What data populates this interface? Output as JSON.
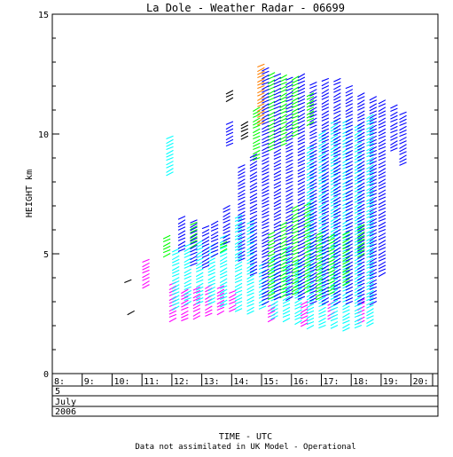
{
  "chart_data": {
    "type": "scatter",
    "title": "La Dole - Weather Radar - 06699",
    "ylabel": "HEIGHT km",
    "xlabel": "TIME - UTC",
    "footnote": "Data not assimilated in UK Model - Operational",
    "ylim": [
      0,
      15
    ],
    "xlim": [
      8,
      20.9
    ],
    "yticks": [
      {
        "value": 0,
        "label": "0"
      },
      {
        "value": 5,
        "label": "5"
      },
      {
        "value": 10,
        "label": "10"
      },
      {
        "value": 15,
        "label": "15"
      }
    ],
    "xticks": [
      {
        "value": 8,
        "label": "8:"
      },
      {
        "value": 9,
        "label": "9:"
      },
      {
        "value": 10,
        "label": "10:"
      },
      {
        "value": 11,
        "label": "11:"
      },
      {
        "value": 12,
        "label": "12:"
      },
      {
        "value": 13,
        "label": "13:"
      },
      {
        "value": 14,
        "label": "14:"
      },
      {
        "value": 15,
        "label": "15:"
      },
      {
        "value": 16,
        "label": "16:"
      },
      {
        "value": 17,
        "label": "17:"
      },
      {
        "value": 18,
        "label": "18:"
      },
      {
        "value": 19,
        "label": "19:"
      },
      {
        "value": 20,
        "label": "20:"
      }
    ],
    "date_rows": [
      "5",
      "July",
      "2006"
    ],
    "series": [
      {
        "color": "#ff00ff",
        "profiles": [
          {
            "t": 11.1,
            "h0": 3.7,
            "h1": 4.8
          },
          {
            "t": 12.0,
            "h0": 2.3,
            "h1": 3.8
          },
          {
            "t": 12.4,
            "h0": 2.3,
            "h1": 3.5
          },
          {
            "t": 12.8,
            "h0": 2.4,
            "h1": 3.6
          },
          {
            "t": 13.2,
            "h0": 2.5,
            "h1": 3.8
          },
          {
            "t": 13.6,
            "h0": 2.6,
            "h1": 3.7
          },
          {
            "t": 14.0,
            "h0": 2.7,
            "h1": 3.5
          },
          {
            "t": 15.3,
            "h0": 2.3,
            "h1": 3.0
          },
          {
            "t": 16.4,
            "h0": 2.1,
            "h1": 3.0
          },
          {
            "t": 17.3,
            "h0": 2.4,
            "h1": 3.1
          },
          {
            "t": 18.3,
            "h0": 2.2,
            "h1": 3.1
          }
        ]
      },
      {
        "color": "#00ffff",
        "profiles": [
          {
            "t": 11.9,
            "h0": 8.4,
            "h1": 9.9
          },
          {
            "t": 12.1,
            "h0": 2.8,
            "h1": 5.2
          },
          {
            "t": 12.5,
            "h0": 3.0,
            "h1": 5.4
          },
          {
            "t": 12.9,
            "h0": 3.0,
            "h1": 5.6
          },
          {
            "t": 13.3,
            "h0": 3.0,
            "h1": 5.5
          },
          {
            "t": 13.7,
            "h0": 2.9,
            "h1": 5.8
          },
          {
            "t": 14.2,
            "h0": 2.7,
            "h1": 6.6
          },
          {
            "t": 14.6,
            "h0": 2.6,
            "h1": 6.4
          },
          {
            "t": 15.0,
            "h0": 2.8,
            "h1": 4.6
          },
          {
            "t": 15.4,
            "h0": 2.4,
            "h1": 5.0
          },
          {
            "t": 15.8,
            "h0": 2.3,
            "h1": 5.4
          },
          {
            "t": 16.2,
            "h0": 2.2,
            "h1": 4.8
          },
          {
            "t": 16.6,
            "h0": 2.0,
            "h1": 9.5
          },
          {
            "t": 17.0,
            "h0": 2.0,
            "h1": 10.2
          },
          {
            "t": 17.4,
            "h0": 2.0,
            "h1": 10.6
          },
          {
            "t": 17.8,
            "h0": 1.9,
            "h1": 10.7
          },
          {
            "t": 18.2,
            "h0": 2.0,
            "h1": 10.5
          },
          {
            "t": 18.6,
            "h0": 2.1,
            "h1": 10.9
          }
        ]
      },
      {
        "color": "#00ff00",
        "profiles": [
          {
            "t": 11.8,
            "h0": 5.0,
            "h1": 5.8
          },
          {
            "t": 12.7,
            "h0": 5.4,
            "h1": 6.4
          },
          {
            "t": 13.7,
            "h0": 5.2,
            "h1": 5.6
          },
          {
            "t": 14.8,
            "h0": 9.0,
            "h1": 11.2
          },
          {
            "t": 15.3,
            "h0": 9.4,
            "h1": 12.6
          },
          {
            "t": 15.7,
            "h0": 9.6,
            "h1": 12.5
          },
          {
            "t": 16.1,
            "h0": 10.0,
            "h1": 12.4
          },
          {
            "t": 16.6,
            "h0": 10.5,
            "h1": 11.8
          },
          {
            "t": 15.3,
            "h0": 3.2,
            "h1": 6.0
          },
          {
            "t": 15.7,
            "h0": 3.3,
            "h1": 6.3
          },
          {
            "t": 16.1,
            "h0": 3.4,
            "h1": 7.0
          },
          {
            "t": 16.5,
            "h0": 3.5,
            "h1": 7.2
          },
          {
            "t": 16.9,
            "h0": 3.2,
            "h1": 6.0
          },
          {
            "t": 17.3,
            "h0": 3.4,
            "h1": 5.8
          },
          {
            "t": 17.8,
            "h0": 3.8,
            "h1": 5.9
          },
          {
            "t": 18.3,
            "h0": 5.0,
            "h1": 6.3
          }
        ]
      },
      {
        "color": "#0000ff",
        "profiles": [
          {
            "t": 12.3,
            "h0": 5.2,
            "h1": 6.6
          },
          {
            "t": 12.7,
            "h0": 4.6,
            "h1": 6.4
          },
          {
            "t": 13.1,
            "h0": 4.5,
            "h1": 6.2
          },
          {
            "t": 13.4,
            "h0": 5.0,
            "h1": 6.4
          },
          {
            "t": 13.8,
            "h0": 5.5,
            "h1": 7.0
          },
          {
            "t": 13.9,
            "h0": 9.6,
            "h1": 10.6
          },
          {
            "t": 14.3,
            "h0": 4.8,
            "h1": 8.8
          },
          {
            "t": 14.7,
            "h0": 4.2,
            "h1": 9.2
          },
          {
            "t": 15.1,
            "h0": 3.0,
            "h1": 12.8
          },
          {
            "t": 15.5,
            "h0": 3.2,
            "h1": 12.6
          },
          {
            "t": 15.9,
            "h0": 3.2,
            "h1": 12.4
          },
          {
            "t": 16.3,
            "h0": 3.2,
            "h1": 12.6
          },
          {
            "t": 16.7,
            "h0": 3.0,
            "h1": 12.2
          },
          {
            "t": 17.1,
            "h0": 3.0,
            "h1": 12.4
          },
          {
            "t": 17.5,
            "h0": 3.0,
            "h1": 12.3
          },
          {
            "t": 17.9,
            "h0": 3.0,
            "h1": 12.0
          },
          {
            "t": 18.3,
            "h0": 3.0,
            "h1": 11.8
          },
          {
            "t": 18.7,
            "h0": 3.0,
            "h1": 11.6
          },
          {
            "t": 19.0,
            "h0": 4.2,
            "h1": 11.4
          },
          {
            "t": 19.4,
            "h0": 9.4,
            "h1": 11.2
          },
          {
            "t": 19.7,
            "h0": 8.8,
            "h1": 11.0
          }
        ]
      },
      {
        "color": "#ff7f00",
        "profiles": [
          {
            "t": 14.95,
            "h0": 10.5,
            "h1": 13.0
          }
        ]
      },
      {
        "color": "#000000",
        "profiles": [
          {
            "t": 13.9,
            "h0": 11.5,
            "h1": 11.9
          },
          {
            "t": 14.4,
            "h0": 9.9,
            "h1": 10.6
          },
          {
            "t": 10.6,
            "h0": 2.6,
            "h1": 2.7
          },
          {
            "t": 10.5,
            "h0": 3.9,
            "h1": 4.0
          }
        ]
      }
    ]
  }
}
